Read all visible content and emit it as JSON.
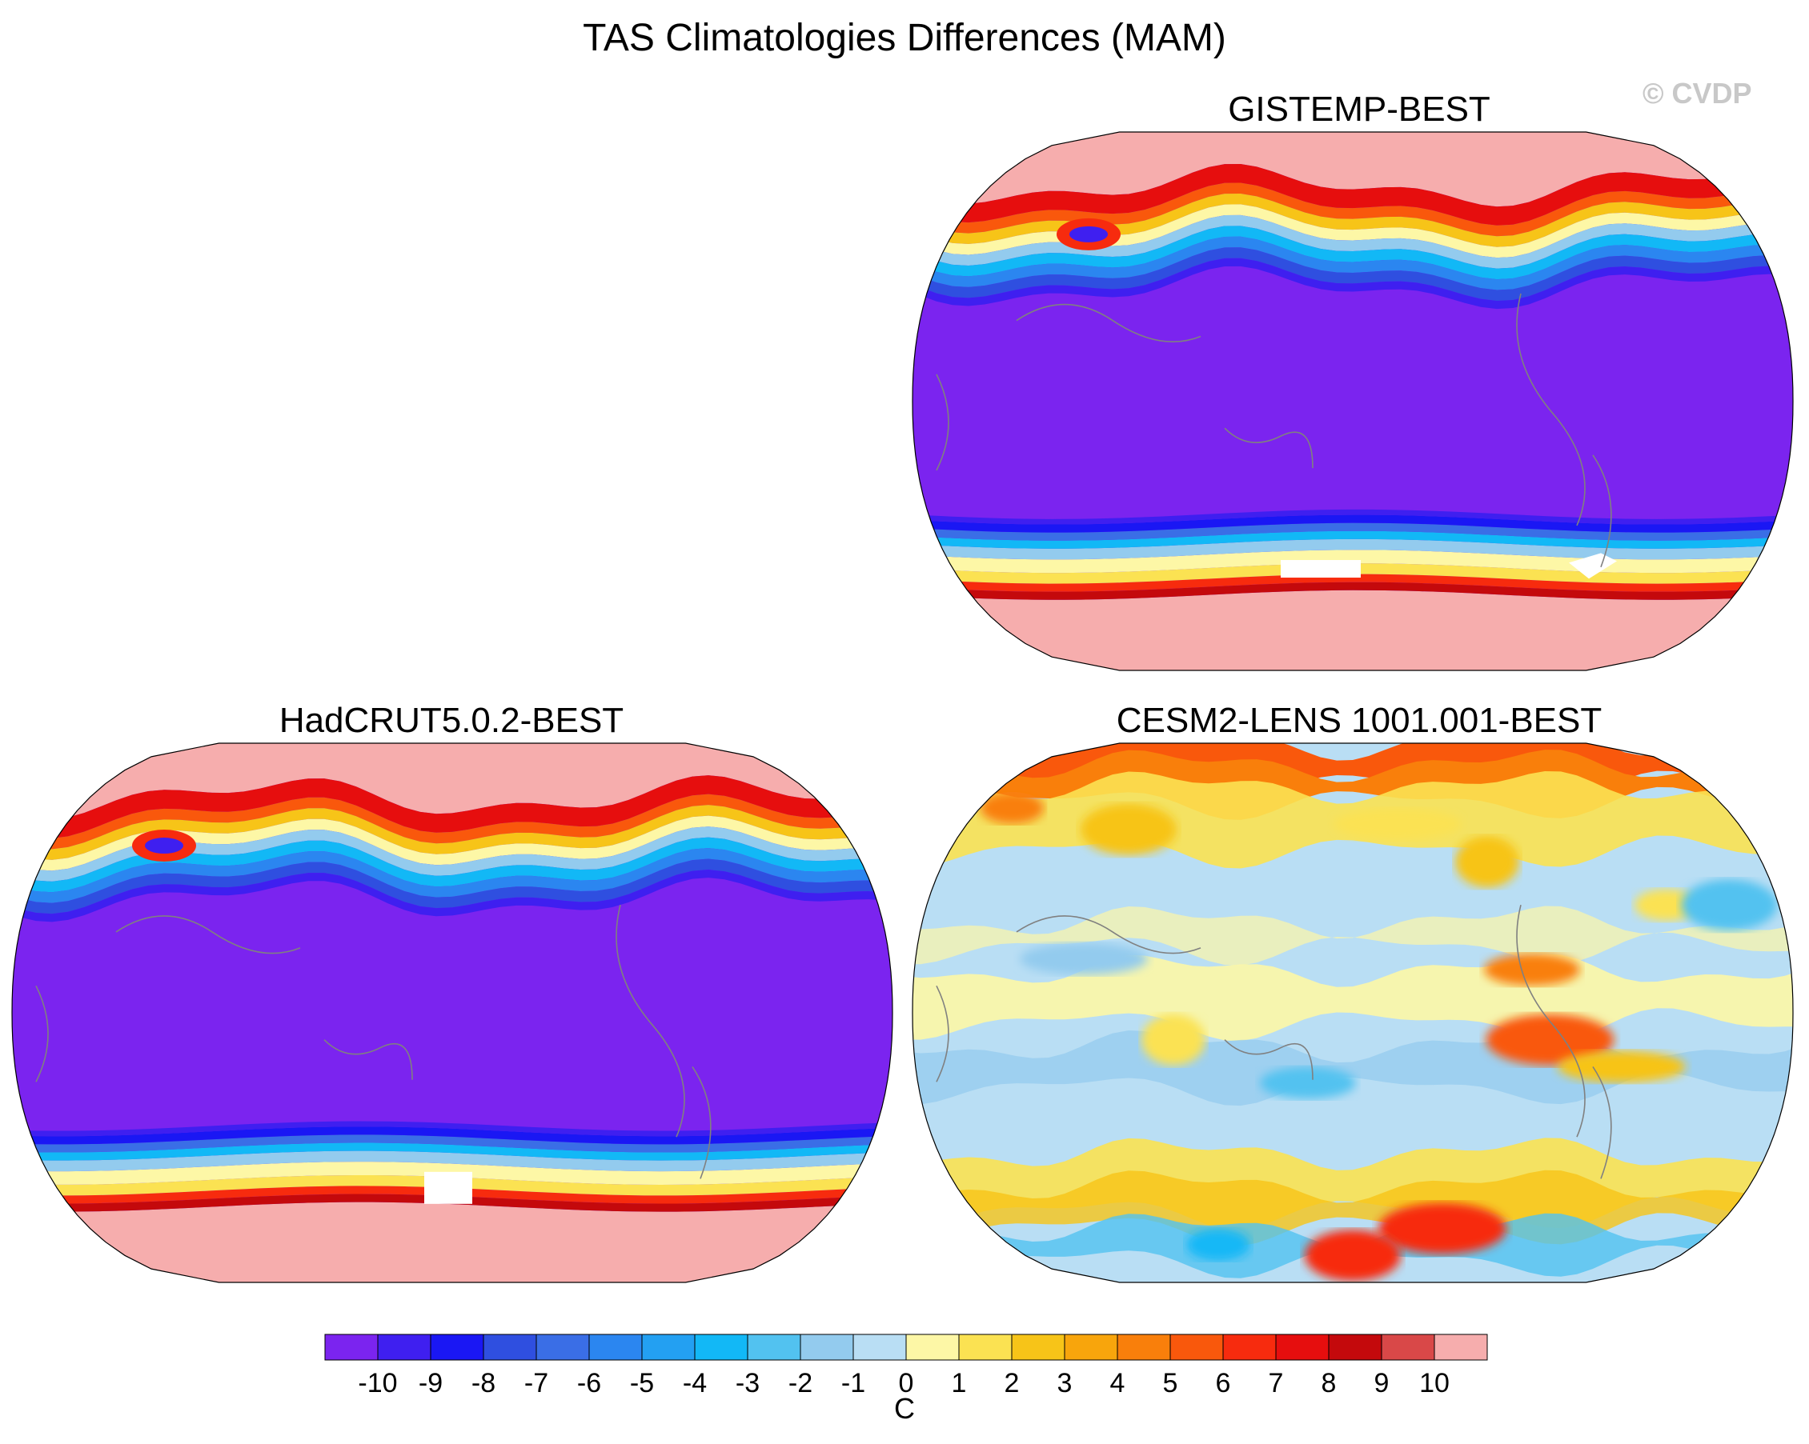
{
  "title": "TAS Climatologies Differences (MAM)",
  "watermark": "© CVDP",
  "panels": [
    {
      "name": "GISTEMP-BEST",
      "pattern": "masked-obs"
    },
    {
      "name": "HadCRUT5.0.2-BEST",
      "pattern": "masked-obs"
    },
    {
      "name": "CESM2-LENS 1001.001-BEST",
      "pattern": "model"
    }
  ],
  "colorbar": {
    "unit": "C",
    "levels": [
      -10,
      -9,
      -8,
      -7,
      -6,
      -5,
      -4,
      -3,
      -2,
      -1,
      0,
      1,
      2,
      3,
      4,
      5,
      6,
      7,
      8,
      9,
      10
    ],
    "colors": [
      "#7b24ef",
      "#3f1ff0",
      "#1a17f4",
      "#2f4fe0",
      "#3a6ee6",
      "#2b86f0",
      "#23a0f2",
      "#12b8f6",
      "#52c2f0",
      "#93cbee",
      "#b9def4",
      "#fdf7a6",
      "#fbe252",
      "#f7c418",
      "#f8a50c",
      "#f97f0b",
      "#f9580c",
      "#f72b0e",
      "#e60e0e",
      "#c4090c",
      "#d94848",
      "#f6adad"
    ]
  },
  "chart_data": {
    "type": "heatmap",
    "projection": "Robinson-like global, Pacific-centred",
    "value_ranges": {
      "masked-obs": [
        -10,
        10
      ],
      "model": [
        -3,
        7
      ]
    },
    "colorbar_levels": [
      -10,
      -9,
      -8,
      -7,
      -6,
      -5,
      -4,
      -3,
      -2,
      -1,
      0,
      1,
      2,
      3,
      4,
      5,
      6,
      7,
      8,
      9,
      10
    ]
  }
}
